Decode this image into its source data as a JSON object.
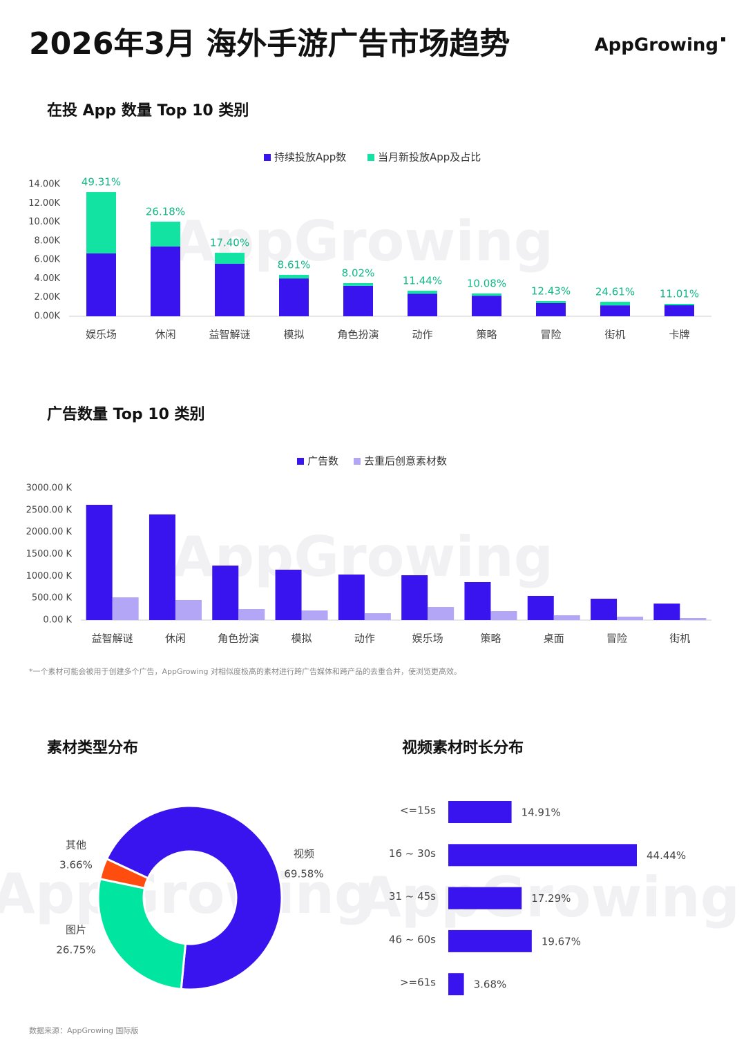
{
  "header": {
    "title": "2026年3月 海外手游广告市场趋势",
    "logo": "AppGrowing",
    "watermark": "AppGrowing"
  },
  "chart_data": [
    {
      "type": "bar",
      "stacked": true,
      "title": "在投 App 数量 Top 10 类别",
      "categories": [
        "娱乐场",
        "休闲",
        "益智解谜",
        "模拟",
        "角色扮演",
        "动作",
        "策略",
        "冒险",
        "街机",
        "卡牌"
      ],
      "series": [
        {
          "name": "持续投放App数",
          "color": "#3a14ee",
          "values": [
            6.68,
            7.41,
            5.57,
            4.02,
            3.24,
            2.4,
            2.18,
            1.41,
            1.16,
            1.17
          ]
        },
        {
          "name": "当月新投放App及占比",
          "color": "#12e3a2",
          "values": [
            6.51,
            2.63,
            1.17,
            0.38,
            0.28,
            0.31,
            0.24,
            0.2,
            0.38,
            0.15
          ],
          "share_labels": [
            "49.31%",
            "26.18%",
            "17.40%",
            "8.61%",
            "8.02%",
            "11.44%",
            "10.08%",
            "12.43%",
            "24.61%",
            "11.01%"
          ]
        }
      ],
      "ylim": [
        0,
        14
      ],
      "yticks": [
        {
          "value": 0,
          "label": "0.00K"
        },
        {
          "value": 2,
          "label": "2.00K"
        },
        {
          "value": 4,
          "label": "4.00K"
        },
        {
          "value": 6,
          "label": "6.00K"
        },
        {
          "value": 8,
          "label": "8.00K"
        },
        {
          "value": 10,
          "label": "10.00K"
        },
        {
          "value": 12,
          "label": "12.00K"
        },
        {
          "value": 14,
          "label": "14.00K"
        }
      ],
      "grid": false
    },
    {
      "type": "bar",
      "stacked": false,
      "title": "广告数量 Top 10 类别",
      "categories": [
        "益智解谜",
        "休闲",
        "角色扮演",
        "模拟",
        "动作",
        "娱乐场",
        "策略",
        "桌面",
        "冒险",
        "街机"
      ],
      "series": [
        {
          "name": "广告数",
          "color": "#3a14ee",
          "values": [
            2623,
            2404,
            1241,
            1147,
            1037,
            1021,
            864,
            550,
            487,
            377
          ]
        },
        {
          "name": "去重后创意素材数",
          "color": "#b3a6f7",
          "values": [
            518,
            456,
            251,
            220,
            157,
            298,
            204,
            110,
            79,
            47
          ]
        }
      ],
      "ylim": [
        0,
        3000
      ],
      "yticks": [
        {
          "value": 0,
          "label": "0.00 K"
        },
        {
          "value": 500,
          "label": "500.00 K"
        },
        {
          "value": 1000,
          "label": "1000.00 K"
        },
        {
          "value": 1500,
          "label": "1500.00 K"
        },
        {
          "value": 2000,
          "label": "2000.00 K"
        },
        {
          "value": 2500,
          "label": "2500.00 K"
        },
        {
          "value": 3000,
          "label": "3000.00 K"
        }
      ],
      "grid": false
    },
    {
      "type": "pie",
      "donut": true,
      "title": "素材类型分布",
      "categories": [
        "视频",
        "图片",
        "其他"
      ],
      "values": [
        69.58,
        26.75,
        3.66
      ],
      "value_labels": [
        "69.58%",
        "26.75%",
        "3.66%"
      ],
      "colors": [
        "#3a14ee",
        "#00e5a0",
        "#ff4d10"
      ]
    },
    {
      "type": "bar",
      "horizontal": true,
      "title": "视频素材时长分布",
      "categories": [
        "<=15s",
        "16 ~ 30s",
        "31 ~ 45s",
        "46 ~ 60s",
        ">=61s"
      ],
      "values": [
        14.91,
        44.44,
        17.29,
        19.67,
        3.68
      ],
      "value_labels": [
        "14.91%",
        "44.44%",
        "17.29%",
        "19.67%",
        "3.68%"
      ],
      "color": "#3a14ee"
    }
  ],
  "footnote": "*一个素材可能会被用于创建多个广告，AppGrowing 对相似度极高的素材进行跨广告媒体和跨产品的去重合并，使浏览更高效。",
  "source": "数据来源：AppGrowing 国际版"
}
